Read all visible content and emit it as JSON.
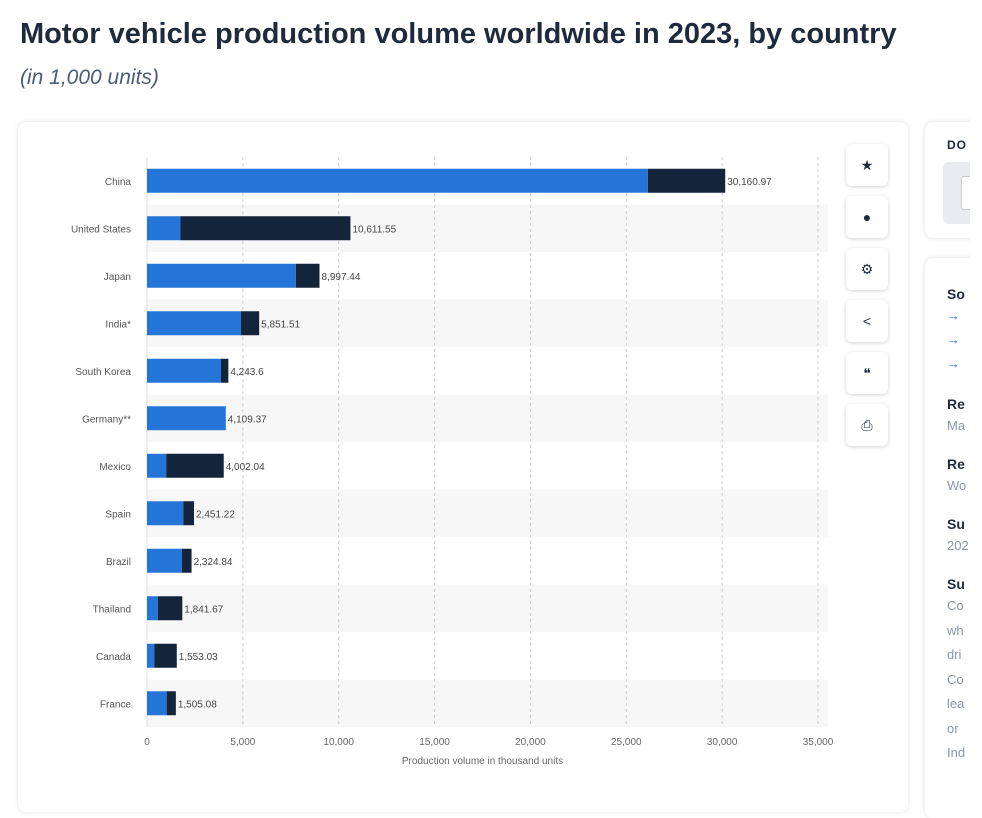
{
  "title": "Motor vehicle production volume worldwide in 2023, by country",
  "subtitle": "(in 1,000 units)",
  "colors": {
    "passenger": "#2575d9",
    "commercial": "#14243b",
    "band": "#f7f7f7"
  },
  "toolbar": {
    "icons": [
      "star-icon",
      "bell-icon",
      "gear-icon",
      "share-icon",
      "quote-icon",
      "print-icon"
    ],
    "glyphs": [
      "★",
      "●",
      "⚙",
      "<",
      "❝",
      "⎙"
    ]
  },
  "side": {
    "download_label": "DO",
    "sections": [
      {
        "h": "So",
        "lines": [
          "→",
          "→",
          "→"
        ]
      },
      {
        "h": "Re",
        "lines": [
          "Ma"
        ]
      },
      {
        "h": "Re",
        "lines": [
          "Wo"
        ]
      },
      {
        "h": "Su",
        "lines": [
          "202"
        ]
      },
      {
        "h": "Su",
        "lines": [
          "Co",
          "wh",
          "dri",
          "Co",
          "lea",
          "or",
          "Ind"
        ]
      }
    ]
  },
  "chart_data": {
    "type": "bar",
    "orientation": "horizontal",
    "stacked": true,
    "categories": [
      "China",
      "United States",
      "Japan",
      "India*",
      "South Korea",
      "Germany**",
      "Mexico",
      "Spain",
      "Brazil",
      "Thailand",
      "Canada",
      "France"
    ],
    "series": [
      {
        "values": [
          26124,
          1745,
          7765,
          4901,
          3860,
          4109.37,
          1002,
          1892,
          1824,
          566,
          387,
          1026
        ]
      },
      {
        "values": [
          4036.97,
          8866.55,
          1232.44,
          950.51,
          383.6,
          0,
          3000.04,
          559.22,
          500.84,
          1275.67,
          1166.03,
          479.08
        ]
      }
    ],
    "totals": [
      "30,160.97",
      "10,611.55",
      "8,997.44",
      "5,851.51",
      "4,243.6",
      "4,109.37",
      "4,002.04",
      "2,451.22",
      "2,324.84",
      "1,841.67",
      "1,553.03",
      "1,505.08"
    ],
    "xlabel": "Production volume in thousand units",
    "xlim": [
      0,
      35000
    ],
    "xticks": [
      "0",
      "5,000",
      "10,000",
      "15,000",
      "20,000",
      "25,000",
      "30,000",
      "35,000"
    ],
    "grid": true,
    "legend": "none"
  }
}
